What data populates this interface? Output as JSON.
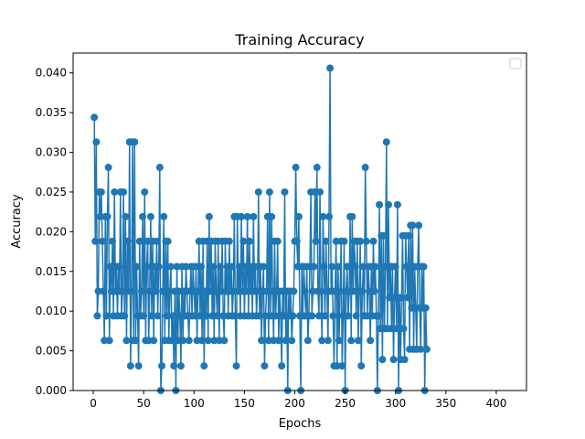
{
  "chart_data": {
    "type": "line",
    "title": "Training Accuracy",
    "xlabel": "Epochs",
    "ylabel": "Accuracy",
    "xlim": [
      -20,
      430
    ],
    "ylim": [
      0,
      0.0425
    ],
    "xticks": [
      0,
      50,
      100,
      150,
      200,
      250,
      300,
      350,
      400
    ],
    "xtick_labels": [
      "0",
      "50",
      "100",
      "150",
      "200",
      "250",
      "300",
      "350",
      "400"
    ],
    "yticks": [
      0.0,
      0.005,
      0.01,
      0.015,
      0.02,
      0.025,
      0.03,
      0.035,
      0.04
    ],
    "ytick_labels": [
      "0.000",
      "0.005",
      "0.010",
      "0.015",
      "0.020",
      "0.025",
      "0.030",
      "0.035",
      "0.040"
    ],
    "grid": false,
    "legend": "top-right",
    "series_color": "#1f77b4",
    "series": [
      {
        "values": [
          0.0344,
          0.0188,
          0.0313,
          0.0094,
          0.0125,
          0.025,
          0.0219,
          0.025,
          0.0188,
          0.0125,
          0.0063,
          0.0219,
          0.0094,
          0.0219,
          0.0281,
          0.0063,
          0.0156,
          0.0125,
          0.0188,
          0.0094,
          0.025,
          0.0125,
          0.0156,
          0.0094,
          0.0156,
          0.0125,
          0.025,
          0.0094,
          0.0125,
          0.025,
          0.0094,
          0.0219,
          0.0063,
          0.0188,
          0.0125,
          0.0313,
          0.0031,
          0.0125,
          0.0313,
          0.0063,
          0.0313,
          0.0063,
          0.0156,
          0.0094,
          0.0031,
          0.0188,
          0.0094,
          0.0125,
          0.0219,
          0.0094,
          0.025,
          0.0063,
          0.0156,
          0.0188,
          0.0063,
          0.0125,
          0.0219,
          0.0094,
          0.0188,
          0.0063,
          0.0156,
          0.0125,
          0.0188,
          0.0094,
          0.0156,
          0.0281,
          0.0,
          0.0031,
          0.0125,
          0.0219,
          0.0063,
          0.0188,
          0.0094,
          0.0188,
          0.0063,
          0.0125,
          0.0156,
          0.0063,
          0.0094,
          0.0031,
          0.0125,
          0.0,
          0.0156,
          0.0063,
          0.0125,
          0.0094,
          0.0031,
          0.0156,
          0.0063,
          0.0125,
          0.0094,
          0.0156,
          0.0125,
          0.0094,
          0.0063,
          0.0125,
          0.0156,
          0.0094,
          0.0156,
          0.0125,
          0.0094,
          0.0156,
          0.0063,
          0.0125,
          0.0188,
          0.0094,
          0.0156,
          0.0063,
          0.0188,
          0.0031,
          0.0125,
          0.0094,
          0.0188,
          0.0063,
          0.0219,
          0.0125,
          0.0188,
          0.0094,
          0.0156,
          0.0063,
          0.0188,
          0.0125,
          0.0094,
          0.0188,
          0.0063,
          0.0156,
          0.0125,
          0.0188,
          0.0094,
          0.0063,
          0.0188,
          0.0125,
          0.0156,
          0.0094,
          0.0188,
          0.0125,
          0.0156,
          0.0094,
          0.0125,
          0.0219,
          0.0094,
          0.0031,
          0.0219,
          0.0125,
          0.0156,
          0.0094,
          0.0219,
          0.0125,
          0.0188,
          0.0094,
          0.0156,
          0.0125,
          0.0219,
          0.0094,
          0.0188,
          0.0125,
          0.0156,
          0.0094,
          0.0219,
          0.0125,
          0.0156,
          0.0094,
          0.0125,
          0.025,
          0.0094,
          0.0156,
          0.0063,
          0.0125,
          0.0156,
          0.0031,
          0.0094,
          0.0125,
          0.0219,
          0.0063,
          0.025,
          0.0094,
          0.0219,
          0.0125,
          0.0063,
          0.0188,
          0.0094,
          0.0125,
          0.0188,
          0.0063,
          0.0125,
          0.0094,
          0.0031,
          0.0125,
          0.0094,
          0.025,
          0.0063,
          0.0125,
          0.0,
          0.0125,
          0.0094,
          0.0125,
          0.0063,
          0.0094,
          0.0125,
          0.0188,
          0.0281,
          0.0188,
          0.0156,
          0.0219,
          0.0094,
          0.0,
          0.0156,
          0.0094,
          0.0156,
          0.0125,
          0.0094,
          0.0156,
          0.0063,
          0.0094,
          0.0156,
          0.025,
          0.0094,
          0.0125,
          0.0156,
          0.025,
          0.0188,
          0.0281,
          0.0125,
          0.0094,
          0.025,
          0.0125,
          0.0063,
          0.0219,
          0.0156,
          0.0094,
          0.0188,
          0.0125,
          0.0063,
          0.0219,
          0.0406,
          0.0125,
          0.0156,
          0.0094,
          0.0031,
          0.0125,
          0.0188,
          0.0031,
          0.0156,
          0.0063,
          0.0125,
          0.0188,
          0.0031,
          0.0094,
          0.0188,
          0.0,
          0.0125,
          0.0156,
          0.0094,
          0.0125,
          0.0219,
          0.0063,
          0.0219,
          0.0125,
          0.0188,
          0.0156,
          0.0094,
          0.0188,
          0.0063,
          0.0125,
          0.0188,
          0.0031,
          0.0125,
          0.0156,
          0.0094,
          0.0281,
          0.0188,
          0.0094,
          0.0156,
          0.0125,
          0.0063,
          0.0156,
          0.0094,
          0.0188,
          0.0125,
          0.0156,
          0.0094,
          0.0,
          0.0094,
          0.0234,
          0.0078,
          0.0195,
          0.0039,
          0.0195,
          0.0078,
          0.0156,
          0.0313,
          0.0078,
          0.0234,
          0.0117,
          0.0156,
          0.0078,
          0.0156,
          0.0039,
          0.0117,
          0.0156,
          0.0078,
          0.0234,
          0.0,
          0.0117,
          0.0039,
          0.0117,
          0.0195,
          0.0078,
          0.0039,
          0.0195,
          0.0156,
          0.0117,
          0.0195,
          0.0052,
          0.0208,
          0.0104,
          0.0208,
          0.0052,
          0.0156,
          0.0104,
          0.0052,
          0.0156,
          0.0208,
          0.0104,
          0.0052,
          0.0156,
          0.0104,
          0.0156,
          0.0,
          0.0104,
          0.0052
        ]
      }
    ]
  }
}
